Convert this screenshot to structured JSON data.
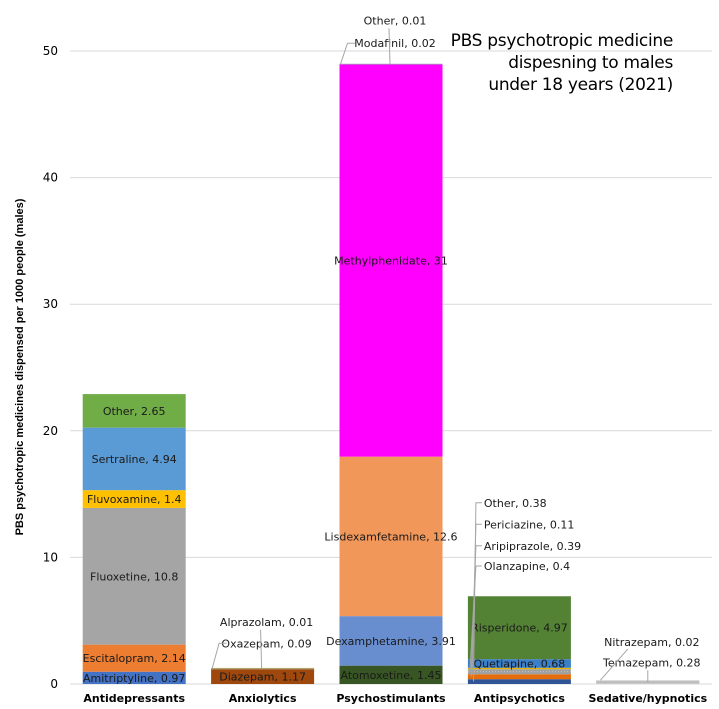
{
  "chart_data": {
    "type": "bar",
    "stacked": true,
    "title": "PBS psychotropic medicine dispesning to males under 18 years (2021)",
    "title_lines": [
      "PBS psychotropic medicine",
      "dispesning to males",
      "under 18 years (2021)"
    ],
    "xlabel": "",
    "ylabel": "PBS psychotropic medicines dispensed per 1000 people (males)",
    "ylim": [
      0,
      50
    ],
    "yticks": [
      0,
      10,
      20,
      30,
      40,
      50
    ],
    "grid": true,
    "legend": "none",
    "categories": [
      "Antidepressants",
      "Anxiolytics",
      "Psychostimulants",
      "Antipsychotics",
      "Sedative/hypnotics"
    ],
    "stacks": [
      {
        "category": "Antidepressants",
        "segments": [
          {
            "name": "Amitriptyline",
            "value": 0.97,
            "color": "#4472C4",
            "label": "Amitriptyline, 0.97",
            "label_pos": "inside"
          },
          {
            "name": "Escitalopram",
            "value": 2.14,
            "color": "#ED7D31",
            "label": "Escitalopram, 2.14",
            "label_pos": "inside"
          },
          {
            "name": "Fluoxetine",
            "value": 10.8,
            "color": "#A5A5A5",
            "label": "Fluoxetine, 10.8",
            "label_pos": "inside"
          },
          {
            "name": "Fluvoxamine",
            "value": 1.4,
            "color": "#FFC000",
            "label": "Fluvoxamine, 1.4",
            "label_pos": "inside"
          },
          {
            "name": "Sertraline",
            "value": 4.94,
            "color": "#5B9BD5",
            "label": "Sertraline, 4.94",
            "label_pos": "inside"
          },
          {
            "name": "Other",
            "value": 2.65,
            "color": "#70AD47",
            "label": "Other, 2.65",
            "label_pos": "inside"
          }
        ]
      },
      {
        "category": "Anxiolytics",
        "segments": [
          {
            "name": "Diazepam",
            "value": 1.17,
            "color": "#9E480E",
            "label": "Diazepam, 1.17",
            "label_pos": "inside"
          },
          {
            "name": "Oxazepam",
            "value": 0.09,
            "color": "#A5A5A5",
            "label": "Oxazepam, 0.09",
            "label_pos": "callout"
          },
          {
            "name": "Alprazolam",
            "value": 0.01,
            "color": "#B8A32A",
            "label": "Alprazolam, 0.01",
            "label_pos": "callout"
          }
        ]
      },
      {
        "category": "Psychostimulants",
        "segments": [
          {
            "name": "Atomoxetine",
            "value": 1.45,
            "color": "#375623",
            "label": "Atomoxetine, 1.45",
            "label_pos": "inside"
          },
          {
            "name": "Dexamphetamine",
            "value": 3.91,
            "color": "#698ED0",
            "label": "Dexamphetamine, 3.91",
            "label_pos": "inside"
          },
          {
            "name": "Lisdexamfetamine",
            "value": 12.6,
            "color": "#F1975A",
            "label": "Lisdexamfetamine, 12.6",
            "label_pos": "inside"
          },
          {
            "name": "Methylphenidate",
            "value": 31,
            "color": "#FF00FF",
            "label": "Methylphenidate, 31",
            "label_pos": "inside"
          },
          {
            "name": "Modafinil",
            "value": 0.02,
            "color": "#E2C14A",
            "label": "Modafinil, 0.02",
            "label_pos": "callout"
          },
          {
            "name": "Other",
            "value": 0.01,
            "color": "#7FA3D6",
            "label": "Other, 0.01",
            "label_pos": "callout"
          }
        ]
      },
      {
        "category": "Antipsychotics",
        "segments": [
          {
            "name": "Other",
            "value": 0.38,
            "color": "#2F5597",
            "label": "Other, 0.38",
            "label_pos": "callout"
          },
          {
            "name": "Aripiprazole",
            "value": 0.39,
            "color": "#E46C0A",
            "label": "Aripiprazole, 0.39",
            "label_pos": "callout"
          },
          {
            "name": "Olanzapine",
            "value": 0.4,
            "color": "#9E9E9E",
            "label": "Olanzapine, 0.4",
            "label_pos": "callout"
          },
          {
            "name": "Periciazine",
            "value": 0.11,
            "color": "#E5B400",
            "label": "Periciazine, 0.11",
            "label_pos": "callout"
          },
          {
            "name": "Quetiapine",
            "value": 0.68,
            "color": "#3A7FC8",
            "label": "Quetiapine, 0.68",
            "label_pos": "inside"
          },
          {
            "name": "Risperidone",
            "value": 4.97,
            "color": "#548235",
            "label": "Risperidone, 4.97",
            "label_pos": "inside"
          }
        ]
      },
      {
        "category": "Sedative/hypnotics",
        "segments": [
          {
            "name": "Temazepam",
            "value": 0.28,
            "color": "#C9C9C9",
            "label": "Temazepam, 0.28",
            "label_pos": "callout"
          },
          {
            "name": "Nitrazepam",
            "value": 0.02,
            "color": "#D9D9D9",
            "label": "Nitrazepam, 0.02",
            "label_pos": "callout"
          }
        ]
      }
    ]
  }
}
